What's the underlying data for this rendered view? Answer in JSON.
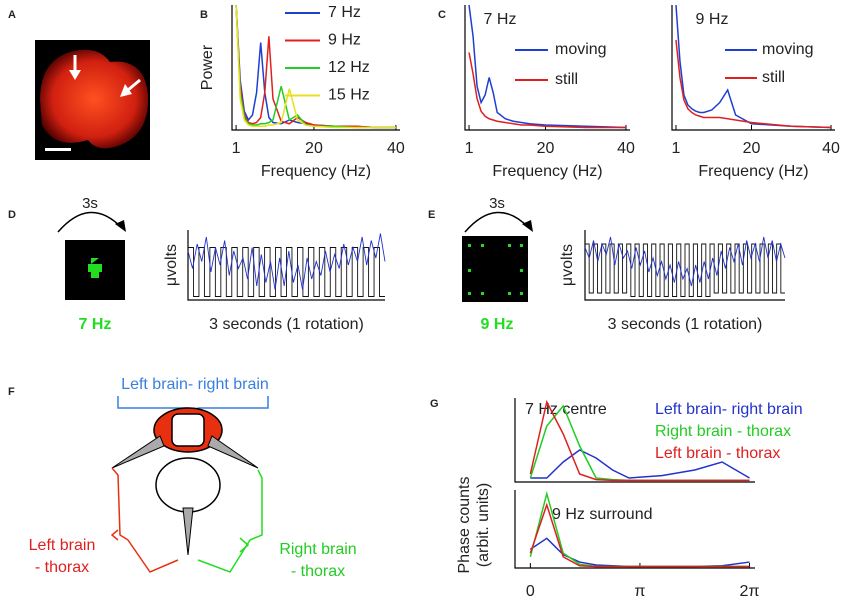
{
  "panel_labels": [
    "A",
    "B",
    "C",
    "D",
    "E",
    "F",
    "G"
  ],
  "stimuli": {
    "D": {
      "duration": "3s",
      "frequency": "7 Hz"
    },
    "E": {
      "duration": "3s",
      "frequency": "9 Hz"
    }
  },
  "diagram": {
    "top_label": "Left brain- right brain",
    "left_label": [
      "Left brain",
      "- thorax"
    ],
    "right_label": [
      "Right brain",
      "- thorax"
    ]
  },
  "chart_data": [
    {
      "type": "line",
      "ylabel": "Power",
      "xlabel": "Frequency (Hz)",
      "xlim": [
        0,
        41
      ],
      "ylim": [
        0,
        100
      ],
      "xticks": [
        1,
        20,
        40
      ],
      "x": [
        1,
        2,
        3,
        4,
        5,
        6,
        7,
        8,
        9,
        10,
        12,
        14,
        16,
        18,
        20,
        25,
        30,
        35,
        40
      ],
      "series": [
        {
          "name": "7 Hz",
          "color": "#1f3fd0",
          "values": [
            100,
            40,
            15,
            8,
            12,
            30,
            70,
            30,
            10,
            6,
            5,
            8,
            6,
            5,
            4,
            3,
            3,
            2,
            2
          ]
        },
        {
          "name": "9 Hz",
          "color": "#e02020",
          "values": [
            100,
            35,
            12,
            6,
            5,
            6,
            10,
            30,
            75,
            25,
            7,
            5,
            10,
            6,
            4,
            3,
            3,
            2,
            2
          ]
        },
        {
          "name": "12 Hz",
          "color": "#22cc22",
          "values": [
            100,
            30,
            10,
            5,
            4,
            4,
            5,
            5,
            6,
            8,
            35,
            8,
            12,
            4,
            3,
            3,
            2,
            2,
            2
          ]
        },
        {
          "name": "15 Hz",
          "color": "#e8e020",
          "values": [
            100,
            25,
            8,
            4,
            3,
            3,
            3,
            3,
            4,
            4,
            6,
            33,
            8,
            4,
            3,
            2,
            2,
            2,
            2
          ]
        }
      ]
    },
    {
      "type": "line",
      "title": "7 Hz",
      "xlabel": "Frequency (Hz)",
      "xlim": [
        0,
        41
      ],
      "ylim": [
        0,
        100
      ],
      "xticks": [
        1,
        20,
        40
      ],
      "x": [
        1,
        2,
        3,
        4,
        5,
        6,
        7,
        8,
        10,
        12,
        14,
        16,
        20,
        30,
        40
      ],
      "series": [
        {
          "name": "moving",
          "color": "#1f3fd0",
          "values": [
            100,
            75,
            35,
            22,
            28,
            42,
            30,
            14,
            9,
            7,
            6,
            5,
            4,
            3,
            2
          ]
        },
        {
          "name": "still",
          "color": "#e02020",
          "values": [
            62,
            45,
            25,
            15,
            11,
            9,
            8,
            7,
            6,
            5,
            4,
            4,
            3,
            2,
            2
          ]
        }
      ]
    },
    {
      "type": "line",
      "title": "9 Hz",
      "xlabel": "Frequency (Hz)",
      "xlim": [
        0,
        41
      ],
      "ylim": [
        0,
        100
      ],
      "xticks": [
        1,
        20,
        40
      ],
      "x": [
        1,
        2,
        3,
        4,
        5,
        6,
        7,
        8,
        10,
        12,
        14,
        16,
        20,
        30,
        40
      ],
      "series": [
        {
          "name": "moving",
          "color": "#1f3fd0",
          "values": [
            100,
            55,
            28,
            20,
            17,
            15,
            14,
            14,
            16,
            22,
            32,
            12,
            5,
            3,
            2
          ]
        },
        {
          "name": "still",
          "color": "#e02020",
          "values": [
            72,
            42,
            24,
            17,
            14,
            12,
            11,
            10,
            10,
            10,
            9,
            8,
            6,
            3,
            2
          ]
        }
      ]
    },
    {
      "type": "trace",
      "ylabel": "μvolts",
      "xlabel": "3 seconds (1 rotation)",
      "ylim": [
        0,
        1
      ],
      "series": [
        {
          "color": "#111111",
          "drawstyle": "steps",
          "values": [
            0.75,
            0.05,
            0.75,
            0.05,
            0.75,
            0.05,
            0.75,
            0.05,
            0.75,
            0.05,
            0.75,
            0.05,
            0.75,
            0.05,
            0.75,
            0.05,
            0.75,
            0.05,
            0.75,
            0.05,
            0.75,
            0.05,
            0.75,
            0.05,
            0.75,
            0.05,
            0.75,
            0.05,
            0.75,
            0.05,
            0.75,
            0.05,
            0.75,
            0.05,
            0.75,
            0.05
          ]
        },
        {
          "color": "#2233cc",
          "values": [
            0.7,
            0.45,
            0.8,
            0.55,
            0.9,
            0.4,
            0.75,
            0.5,
            0.85,
            0.35,
            0.7,
            0.45,
            0.6,
            0.3,
            0.75,
            0.2,
            0.65,
            0.25,
            0.55,
            0.15,
            0.6,
            0.2,
            0.7,
            0.25,
            0.5,
            0.15,
            0.6,
            0.3,
            0.55,
            0.35,
            0.7,
            0.4,
            0.65,
            0.45,
            0.8,
            0.5,
            0.75,
            0.55,
            0.9,
            0.5,
            0.85,
            0.6,
            0.95,
            0.55
          ]
        }
      ]
    },
    {
      "type": "trace",
      "ylabel": "μvolts",
      "xlabel": "3 seconds (1 rotation)",
      "ylim": [
        0,
        1
      ],
      "series": [
        {
          "color": "#111111",
          "drawstyle": "steps",
          "values": [
            0.8,
            0.1,
            0.8,
            0.1,
            0.8,
            0.1,
            0.8,
            0.1,
            0.8,
            0.1,
            0.8,
            0.05,
            0.8,
            0.05,
            0.8,
            0.05,
            0.8,
            0.05,
            0.8,
            0.05,
            0.8,
            0.05,
            0.8,
            0.05,
            0.8,
            0.05,
            0.8,
            0.05,
            0.8,
            0.05,
            0.8,
            0.1,
            0.8,
            0.1,
            0.8,
            0.1,
            0.8,
            0.1,
            0.8,
            0.1,
            0.8,
            0.1,
            0.8,
            0.1,
            0.8,
            0.1,
            0.8,
            0.1
          ]
        },
        {
          "color": "#2233cc",
          "values": [
            0.75,
            0.6,
            0.85,
            0.55,
            0.8,
            0.65,
            0.9,
            0.5,
            0.8,
            0.6,
            0.7,
            0.45,
            0.75,
            0.5,
            0.7,
            0.4,
            0.6,
            0.35,
            0.55,
            0.3,
            0.5,
            0.25,
            0.55,
            0.3,
            0.45,
            0.2,
            0.5,
            0.25,
            0.55,
            0.3,
            0.6,
            0.35,
            0.7,
            0.45,
            0.75,
            0.55,
            0.8,
            0.5,
            0.85,
            0.6,
            0.8,
            0.55,
            0.9,
            0.6,
            0.85,
            0.55,
            0.8,
            0.6
          ]
        }
      ]
    },
    {
      "type": "line",
      "title": "7 Hz centre",
      "ylabel": [
        "Phase counts",
        "(arbit. units)"
      ],
      "xlim": [
        -0.14,
        2.05
      ],
      "ylim": [
        0,
        105
      ],
      "x": [
        0,
        0.15,
        0.3,
        0.45,
        0.6,
        0.75,
        0.9,
        1.2,
        1.5,
        1.75,
        2.0
      ],
      "series": [
        {
          "name": "Left brain- right brain",
          "color": "#2233cc",
          "values": [
            5,
            5,
            25,
            40,
            30,
            15,
            5,
            8,
            15,
            25,
            5
          ]
        },
        {
          "name": "Right brain - thorax",
          "color": "#22cc22",
          "values": [
            5,
            70,
            95,
            45,
            5,
            3,
            2,
            2,
            2,
            2,
            2
          ]
        },
        {
          "name": "Left brain - thorax",
          "color": "#e02020",
          "values": [
            10,
            100,
            60,
            10,
            3,
            2,
            2,
            2,
            2,
            2,
            2
          ]
        }
      ]
    },
    {
      "type": "line",
      "title": "9 Hz surround",
      "xlim": [
        -0.14,
        2.05
      ],
      "ylim": [
        0,
        105
      ],
      "xticks": [
        0,
        {
          "value": 1,
          "label": "π"
        },
        {
          "value": 2,
          "label": "2π"
        }
      ],
      "x": [
        0,
        0.15,
        0.3,
        0.45,
        0.6,
        0.75,
        0.9,
        1.2,
        1.5,
        1.75,
        2.0
      ],
      "series": [
        {
          "color": "#2233cc",
          "values": [
            25,
            40,
            18,
            8,
            4,
            3,
            2,
            2,
            2,
            3,
            8
          ]
        },
        {
          "color": "#22cc22",
          "values": [
            15,
            100,
            20,
            5,
            2,
            2,
            2,
            2,
            2,
            2,
            2
          ]
        },
        {
          "color": "#e02020",
          "values": [
            20,
            85,
            15,
            3,
            2,
            2,
            2,
            2,
            2,
            2,
            2
          ]
        }
      ]
    }
  ]
}
